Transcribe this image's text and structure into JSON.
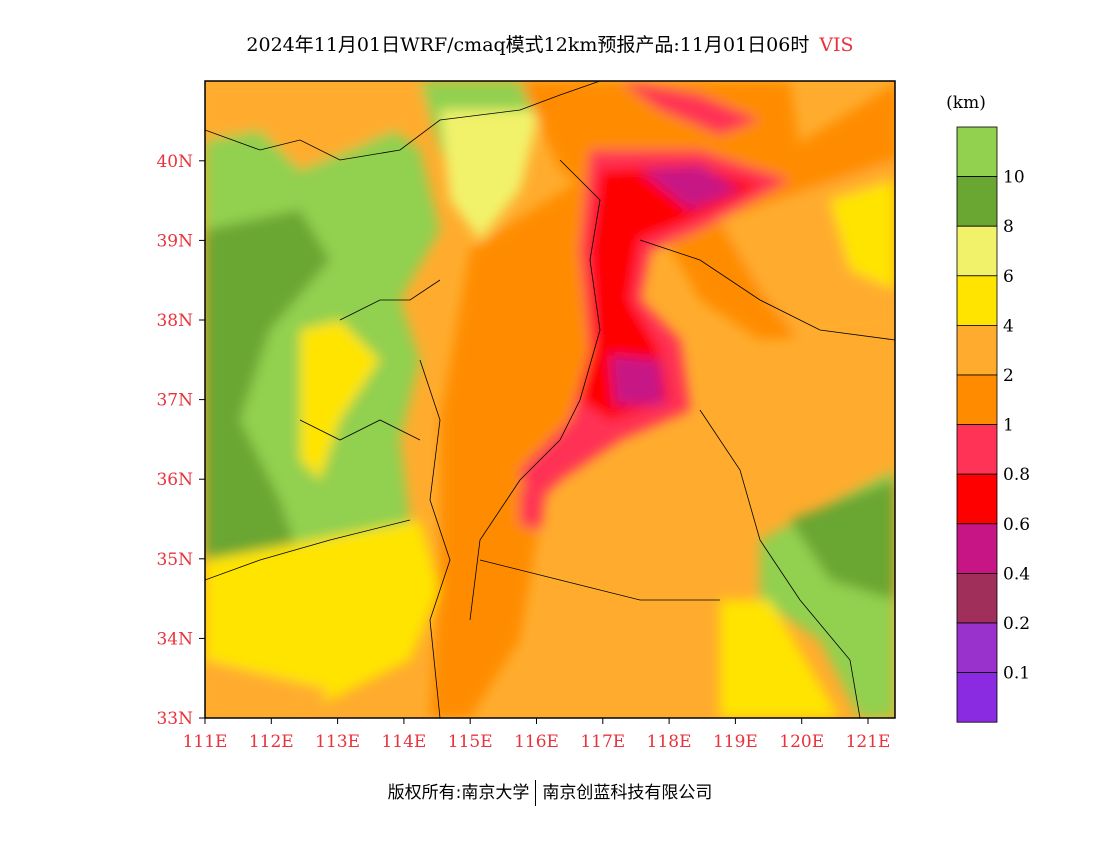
{
  "title": {
    "main": "2024年11月01日WRF/cmaq模式12km预报产品:11月01日06时",
    "variable": "VIS"
  },
  "map": {
    "lon_labels": [
      "111E",
      "112E",
      "113E",
      "114E",
      "115E",
      "116E",
      "117E",
      "118E",
      "119E",
      "120E",
      "121E"
    ],
    "lat_labels": [
      "33N",
      "34N",
      "35N",
      "36N",
      "37N",
      "38N",
      "39N",
      "40N"
    ],
    "tick_color": "#e8323c"
  },
  "legend": {
    "unit": "(km)",
    "labels": [
      "10",
      "8",
      "6",
      "4",
      "2",
      "1",
      "0.8",
      "0.6",
      "0.4",
      "0.2",
      "0.1"
    ],
    "colors": [
      "#92d050",
      "#6aa632",
      "#f2f26a",
      "#ffe400",
      "#ffac2e",
      "#ff8c00",
      "#ff3355",
      "#ff0000",
      "#c71585",
      "#a0305a",
      "#9932cc",
      "#8a2be2"
    ]
  },
  "footer": {
    "left": "版权所有:南京大学",
    "right": "南京创蓝科技有限公司"
  }
}
